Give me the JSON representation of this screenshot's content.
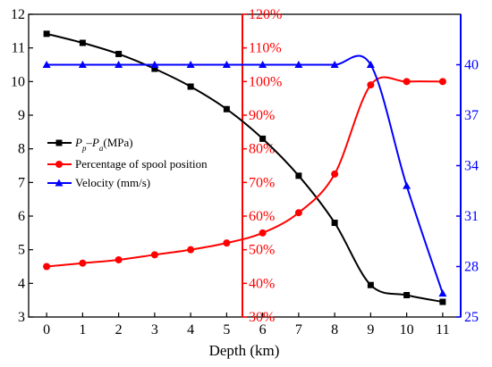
{
  "chart_data": {
    "type": "line",
    "xlabel": "Depth (km)",
    "x": [
      0,
      1,
      2,
      3,
      4,
      5,
      6,
      7,
      8,
      9,
      10,
      11
    ],
    "xlim": [
      -0.5,
      11.5
    ],
    "xticks": [
      "0",
      "1",
      "2",
      "3",
      "4",
      "5",
      "6",
      "7",
      "8",
      "9",
      "10",
      "11"
    ],
    "axes": {
      "left": {
        "ylim": [
          3,
          12
        ],
        "ticks": [
          3,
          4,
          5,
          6,
          7,
          8,
          9,
          10,
          11,
          12
        ],
        "color": "#000000"
      },
      "middle": {
        "ylim": [
          30,
          120
        ],
        "ticks": [
          30,
          40,
          50,
          60,
          70,
          80,
          90,
          100,
          110,
          120
        ],
        "suffix": "%",
        "color": "#ff0000"
      },
      "right": {
        "ylim": [
          25,
          43
        ],
        "ticks": [
          25,
          28,
          31,
          34,
          37,
          40
        ],
        "color": "#0000ff"
      }
    },
    "series": [
      {
        "name_main": "P",
        "name_sub1": "p",
        "name_minus": "–",
        "name_main2": "P",
        "name_sub2": "a",
        "name_unit": "(MPa)",
        "axis": "left",
        "color": "#000000",
        "marker": "square",
        "values": [
          11.42,
          11.15,
          10.82,
          10.38,
          9.85,
          9.18,
          8.3,
          7.2,
          5.8,
          3.95,
          3.65,
          3.45
        ]
      },
      {
        "name": "Percentage of spool position",
        "axis": "middle",
        "color": "#ff0000",
        "marker": "circle",
        "values": [
          45,
          46,
          47,
          48.5,
          50,
          52,
          55,
          61,
          72.5,
          99,
          100,
          100
        ]
      },
      {
        "name": "Velocity (mm/s)",
        "axis": "right",
        "color": "#0000ff",
        "marker": "triangle",
        "values": [
          40,
          40,
          40,
          40,
          40,
          40,
          40,
          40,
          40,
          40,
          32.8,
          26.4
        ]
      }
    ],
    "legend_position": "middle-left",
    "grid": false
  }
}
